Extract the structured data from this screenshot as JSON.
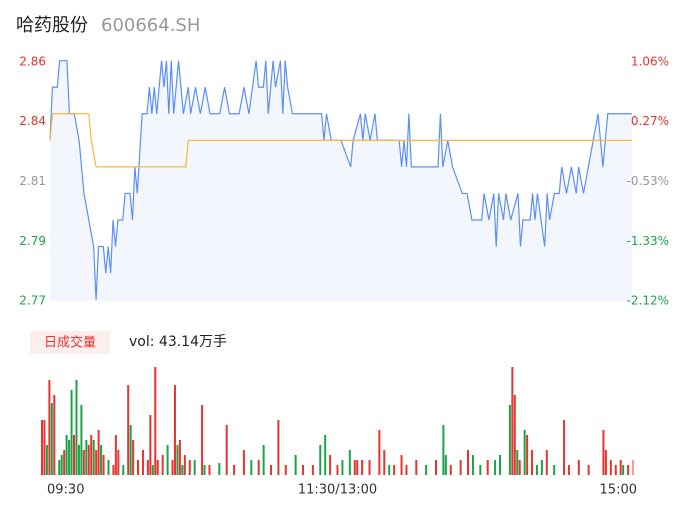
{
  "chart_data": [
    {
      "type": "line",
      "title": "哈药股份",
      "subtitle": "600664.SH",
      "xlim": [
        0,
        240
      ],
      "ylim": [
        2.7695,
        2.8595
      ],
      "yticks": [
        {
          "value": 2.8595,
          "label": "2.86"
        },
        {
          "value": 2.8371,
          "label": "2.84"
        },
        {
          "value": 2.8145,
          "label": "2.81"
        },
        {
          "value": 2.7919,
          "label": "2.79"
        },
        {
          "value": 2.7695,
          "label": "2.77"
        }
      ],
      "ytick_colors": [
        "#e8332f",
        "#e8332f",
        "#999999",
        "#1aa34a",
        "#1aa34a"
      ],
      "y2lim": [
        -2.12,
        1.06
      ],
      "y2ticks": [
        {
          "value": 1.06,
          "label": "1.06%"
        },
        {
          "value": 0.27,
          "label": "0.27%"
        },
        {
          "value": -0.53,
          "label": "-0.53%"
        },
        {
          "value": -1.33,
          "label": "-1.33%"
        },
        {
          "value": -2.12,
          "label": "-2.12%"
        }
      ],
      "y2tick_colors": [
        "#e8332f",
        "#e8332f",
        "#999999",
        "#1aa34a",
        "#1aa34a"
      ],
      "area_color": "#f3f6fd",
      "series": [
        {
          "color": "#5b8ff9",
          "x": [
            0,
            1,
            3,
            4,
            7,
            8,
            10,
            12,
            14,
            16,
            18,
            19,
            20,
            22,
            23,
            24,
            25,
            26,
            27,
            28,
            30,
            31,
            33,
            34,
            35,
            36,
            38,
            40,
            41,
            42,
            43,
            44,
            46,
            47,
            48,
            49,
            50,
            51,
            52,
            53,
            54,
            55,
            57,
            58,
            60,
            62,
            64,
            66,
            70,
            72,
            74,
            78,
            80,
            82,
            85,
            86,
            88,
            89,
            90,
            92,
            93,
            95,
            96,
            97,
            98,
            100,
            112,
            113,
            114,
            116,
            120,
            124,
            125,
            128,
            129,
            130,
            132,
            134,
            135,
            144,
            145,
            146,
            147,
            148,
            149,
            155,
            160,
            161,
            162,
            164,
            166,
            170,
            172,
            174,
            178,
            179,
            181,
            183,
            184,
            185,
            187,
            188,
            190,
            193,
            194,
            195,
            198,
            199,
            200,
            201,
            204,
            205,
            206,
            208,
            210,
            211,
            213,
            215,
            217,
            218,
            220,
            222,
            224,
            226,
            227,
            228,
            229,
            230,
            240
          ],
          "values": [
            2.83,
            2.85,
            2.85,
            2.86,
            2.86,
            2.84,
            2.84,
            2.83,
            2.81,
            2.8,
            2.79,
            2.77,
            2.79,
            2.79,
            2.78,
            2.79,
            2.78,
            2.8,
            2.79,
            2.8,
            2.8,
            2.81,
            2.81,
            2.8,
            2.82,
            2.81,
            2.84,
            2.84,
            2.85,
            2.84,
            2.85,
            2.84,
            2.86,
            2.85,
            2.86,
            2.84,
            2.86,
            2.84,
            2.85,
            2.86,
            2.85,
            2.84,
            2.85,
            2.84,
            2.85,
            2.84,
            2.85,
            2.84,
            2.84,
            2.85,
            2.84,
            2.84,
            2.85,
            2.84,
            2.86,
            2.85,
            2.85,
            2.86,
            2.84,
            2.86,
            2.85,
            2.86,
            2.84,
            2.86,
            2.85,
            2.84,
            2.84,
            2.83,
            2.84,
            2.83,
            2.83,
            2.82,
            2.83,
            2.84,
            2.83,
            2.84,
            2.83,
            2.84,
            2.83,
            2.83,
            2.82,
            2.83,
            2.82,
            2.84,
            2.82,
            2.82,
            2.82,
            2.84,
            2.82,
            2.83,
            2.82,
            2.81,
            2.81,
            2.8,
            2.8,
            2.81,
            2.8,
            2.81,
            2.79,
            2.81,
            2.8,
            2.81,
            2.8,
            2.81,
            2.79,
            2.8,
            2.8,
            2.81,
            2.8,
            2.81,
            2.79,
            2.81,
            2.8,
            2.81,
            2.81,
            2.82,
            2.81,
            2.82,
            2.81,
            2.82,
            2.81,
            2.82,
            2.83,
            2.84,
            2.83,
            2.82,
            2.83,
            2.84,
            2.84
          ]
        },
        {
          "color": "#f5b940",
          "x": [
            0,
            1,
            16,
            17,
            19,
            56,
            57,
            240
          ],
          "values": [
            2.83,
            2.84,
            2.84,
            2.83,
            2.82,
            2.82,
            2.83,
            2.83
          ]
        }
      ]
    },
    {
      "type": "bar",
      "label": "日成交量",
      "annotation": "vol: 43.14万手",
      "xlim": [
        0,
        240
      ],
      "xticks": [
        {
          "value": 0,
          "label": "09:30"
        },
        {
          "value": 120,
          "label": "11:30/13:00"
        },
        {
          "value": 240,
          "label": "15:00"
        }
      ],
      "ylim": [
        0,
        110
      ],
      "x": [
        0,
        1,
        2,
        3,
        4,
        5,
        7,
        8,
        9,
        10,
        11,
        12,
        13,
        14,
        15,
        16,
        17,
        18,
        19,
        20,
        21,
        22,
        23,
        24,
        25,
        27,
        29,
        30,
        31,
        33,
        35,
        36,
        37,
        39,
        41,
        43,
        44,
        45,
        46,
        47,
        49,
        51,
        53,
        54,
        55,
        56,
        57,
        58,
        60,
        62,
        65,
        66,
        68,
        72,
        75,
        78,
        82,
        85,
        88,
        90,
        93,
        96,
        99,
        103,
        106,
        110,
        113,
        115,
        117,
        120,
        122,
        125,
        127,
        128,
        130,
        133,
        137,
        139,
        141,
        143,
        146,
        148,
        152,
        156,
        160,
        163,
        164,
        166,
        170,
        173,
        175,
        178,
        181,
        184,
        186,
        190,
        191,
        192,
        193,
        194,
        196,
        197,
        199,
        201,
        203,
        205,
        208,
        212,
        214,
        218,
        222,
        228,
        229,
        231,
        233,
        235,
        236,
        238,
        240
      ],
      "values": [
        55,
        55,
        30,
        95,
        72,
        80,
        15,
        20,
        25,
        40,
        35,
        85,
        40,
        95,
        30,
        70,
        25,
        35,
        30,
        40,
        35,
        25,
        45,
        30,
        20,
        15,
        10,
        40,
        25,
        10,
        90,
        50,
        35,
        15,
        25,
        15,
        60,
        10,
        108,
        15,
        20,
        30,
        15,
        90,
        30,
        35,
        10,
        20,
        15,
        15,
        70,
        10,
        10,
        12,
        50,
        10,
        25,
        15,
        15,
        30,
        10,
        55,
        10,
        20,
        10,
        10,
        30,
        40,
        20,
        10,
        15,
        25,
        15,
        15,
        15,
        15,
        45,
        25,
        10,
        10,
        20,
        10,
        15,
        10,
        15,
        50,
        20,
        10,
        15,
        25,
        20,
        10,
        15,
        15,
        20,
        70,
        108,
        80,
        25,
        15,
        45,
        40,
        25,
        10,
        15,
        25,
        10,
        55,
        10,
        15,
        10,
        45,
        25,
        15,
        10,
        15,
        10,
        10,
        15
      ],
      "colors": [
        "#e8332f",
        "#e8332f",
        "#1aa34a",
        "#e8332f",
        "#1aa34a",
        "#e8332f",
        "#1aa34a",
        "#1aa34a",
        "#e8332f",
        "#1aa34a",
        "#1aa34a",
        "#1aa34a",
        "#e8332f",
        "#1aa34a",
        "#1aa34a",
        "#1aa34a",
        "#e8332f",
        "#1aa34a",
        "#e8332f",
        "#e8332f",
        "#1aa34a",
        "#e8332f",
        "#e8332f",
        "#1aa34a",
        "#e8332f",
        "#1aa34a",
        "#e8332f",
        "#e8332f",
        "#e8332f",
        "#1aa34a",
        "#e8332f",
        "#1aa34a",
        "#e8332f",
        "#e8332f",
        "#e8332f",
        "#e8332f",
        "#e8332f",
        "#1aa34a",
        "#e8332f",
        "#e8332f",
        "#e8332f",
        "#1aa34a",
        "#e8332f",
        "#e8332f",
        "#1aa34a",
        "#e8332f",
        "#1aa34a",
        "#e8332f",
        "#e8332f",
        "#1aa34a",
        "#e8332f",
        "#1aa34a",
        "#e8332f",
        "#1aa34a",
        "#e8332f",
        "#e8332f",
        "#e8332f",
        "#1aa34a",
        "#e8332f",
        "#1aa34a",
        "#e8332f",
        "#e8332f",
        "#e8332f",
        "#1aa34a",
        "#e8332f",
        "#e8332f",
        "#1aa34a",
        "#1aa34a",
        "#e8332f",
        "#e8332f",
        "#1aa34a",
        "#1aa34a",
        "#e8332f",
        "#e8332f",
        "#e8332f",
        "#e8332f",
        "#e8332f",
        "#e8332f",
        "#1aa34a",
        "#e8332f",
        "#e8332f",
        "#e8332f",
        "#e8332f",
        "#1aa34a",
        "#e8332f",
        "#1aa34a",
        "#1aa34a",
        "#e8332f",
        "#e8332f",
        "#e8332f",
        "#1aa34a",
        "#1aa34a",
        "#e8332f",
        "#1aa34a",
        "#1aa34a",
        "#1aa34a",
        "#e8332f",
        "#e8332f",
        "#1aa34a",
        "#e8332f",
        "#1aa34a",
        "#e8332f",
        "#e8332f",
        "#1aa34a",
        "#1aa34a",
        "#e8332f",
        "#1aa34a",
        "#e8332f",
        "#e8332f",
        "#e8332f",
        "#e8332f",
        "#e8332f",
        "#e8332f",
        "#e8332f",
        "#e8332f",
        "#e8332f",
        "#1aa34a",
        "#e8332f",
        "#f29b9b"
      ]
    }
  ]
}
